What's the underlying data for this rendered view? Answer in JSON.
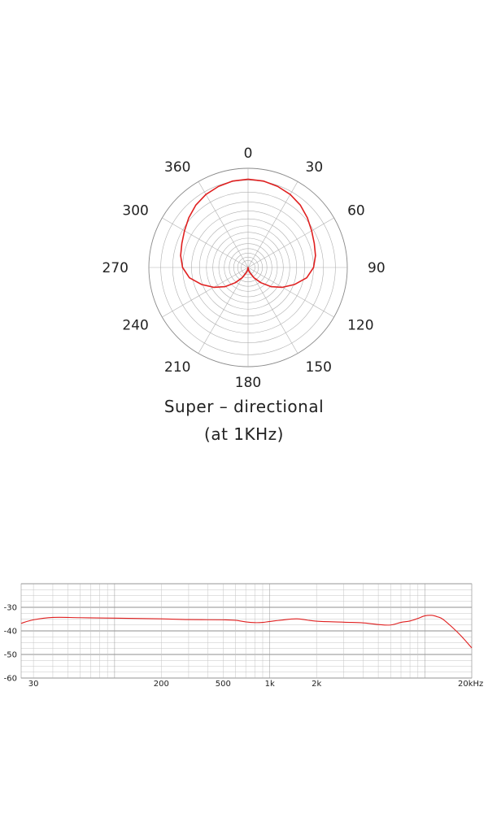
{
  "chart_data": [
    {
      "type": "polar",
      "theta_ticks": [
        "0",
        "30",
        "60",
        "90",
        "120",
        "150",
        "180",
        "210",
        "240",
        "270",
        "300",
        "360"
      ],
      "caption_line1": "Super – directional",
      "caption_line2": "(at 1KHz)",
      "series_color": "#e02020",
      "series": [
        {
          "angles": [
            0,
            10,
            20,
            30,
            40,
            50,
            60,
            70,
            80,
            90,
            100,
            110,
            120,
            130,
            140,
            150,
            160,
            170,
            180,
            190,
            200,
            210,
            220,
            230,
            240,
            250,
            260,
            270,
            280,
            290,
            300,
            310,
            320,
            330,
            340,
            350
          ],
          "values": [
            0.89,
            0.885,
            0.87,
            0.85,
            0.82,
            0.78,
            0.74,
            0.71,
            0.69,
            0.66,
            0.6,
            0.5,
            0.4,
            0.3,
            0.2,
            0.12,
            0.06,
            0.03,
            0.0,
            0.03,
            0.06,
            0.12,
            0.2,
            0.3,
            0.4,
            0.5,
            0.6,
            0.66,
            0.69,
            0.71,
            0.74,
            0.78,
            0.82,
            0.85,
            0.87,
            0.885
          ]
        }
      ]
    },
    {
      "type": "line",
      "x_scale": "log",
      "xlim": [
        25,
        20000
      ],
      "ylim": [
        -60,
        -20
      ],
      "y_ticks": [
        "-30",
        "-40",
        "-50",
        "-60"
      ],
      "x_ticks": [
        "30",
        "200",
        "500",
        "1k",
        "2k",
        "20kHz"
      ],
      "x_tick_values": [
        30,
        200,
        500,
        1000,
        2000,
        20000
      ],
      "series_color": "#e02020",
      "series": [
        {
          "x": [
            25,
            30,
            40,
            60,
            100,
            200,
            300,
            500,
            600,
            700,
            800,
            900,
            1000,
            1200,
            1500,
            2000,
            3000,
            4000,
            5000,
            6000,
            7000,
            8000,
            9000,
            10000,
            11000,
            12000,
            13000,
            15000,
            17000,
            20000
          ],
          "y": [
            -36.8,
            -35.3,
            -34.3,
            -34.4,
            -34.6,
            -34.9,
            -35.2,
            -35.3,
            -35.5,
            -36.2,
            -36.5,
            -36.4,
            -36.0,
            -35.4,
            -34.9,
            -35.9,
            -36.3,
            -36.6,
            -37.3,
            -37.5,
            -36.4,
            -35.8,
            -34.7,
            -33.6,
            -33.4,
            -34.0,
            -35.0,
            -38.5,
            -42.0,
            -47.2
          ]
        }
      ]
    }
  ]
}
